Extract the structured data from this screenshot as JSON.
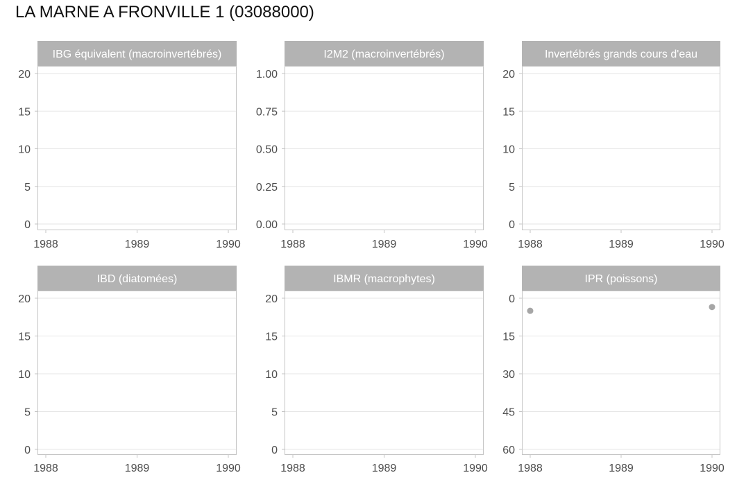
{
  "title": "LA MARNE A FRONVILLE 1 (03088000)",
  "colors": {
    "strip": "#b3b3b3",
    "strip_text": "#ffffff",
    "panel_border": "#c4c4c4",
    "grid": "#e6e6e6",
    "tick_text": "#4d4d4d",
    "point": "#a6a6a6"
  },
  "chart_data": [
    {
      "type": "scatter",
      "title": "IBG équivalent (macroinvertébrés)",
      "x_ticks": [
        1988,
        1989,
        1990
      ],
      "xlim": [
        1988,
        1990
      ],
      "y_ticks": [
        0,
        5,
        10,
        15,
        20
      ],
      "y_tick_labels": [
        "0",
        "5",
        "10",
        "15",
        "20"
      ],
      "ylim": [
        0,
        20
      ],
      "y_reversed": false,
      "grid": true,
      "points": []
    },
    {
      "type": "scatter",
      "title": "I2M2 (macroinvertébrés)",
      "x_ticks": [
        1988,
        1989,
        1990
      ],
      "xlim": [
        1988,
        1990
      ],
      "y_ticks": [
        0,
        0.25,
        0.5,
        0.75,
        1
      ],
      "y_tick_labels": [
        "0.00",
        "0.25",
        "0.50",
        "0.75",
        "1.00"
      ],
      "ylim": [
        0,
        1
      ],
      "y_reversed": false,
      "grid": true,
      "points": []
    },
    {
      "type": "scatter",
      "title": "Invertébrés grands cours d'eau",
      "x_ticks": [
        1988,
        1989,
        1990
      ],
      "xlim": [
        1988,
        1990
      ],
      "y_ticks": [
        0,
        5,
        10,
        15,
        20
      ],
      "y_tick_labels": [
        "0",
        "5",
        "10",
        "15",
        "20"
      ],
      "ylim": [
        0,
        20
      ],
      "y_reversed": false,
      "grid": true,
      "points": []
    },
    {
      "type": "scatter",
      "title": "IBD (diatomées)",
      "x_ticks": [
        1988,
        1989,
        1990
      ],
      "xlim": [
        1988,
        1990
      ],
      "y_ticks": [
        0,
        5,
        10,
        15,
        20
      ],
      "y_tick_labels": [
        "0",
        "5",
        "10",
        "15",
        "20"
      ],
      "ylim": [
        0,
        20
      ],
      "y_reversed": false,
      "grid": true,
      "points": []
    },
    {
      "type": "scatter",
      "title": "IBMR (macrophytes)",
      "x_ticks": [
        1988,
        1989,
        1990
      ],
      "xlim": [
        1988,
        1990
      ],
      "y_ticks": [
        0,
        5,
        10,
        15,
        20
      ],
      "y_tick_labels": [
        "0",
        "5",
        "10",
        "15",
        "20"
      ],
      "ylim": [
        0,
        20
      ],
      "y_reversed": false,
      "grid": true,
      "points": []
    },
    {
      "type": "scatter",
      "title": "IPR (poissons)",
      "x_ticks": [
        1988,
        1989,
        1990
      ],
      "xlim": [
        1988,
        1990
      ],
      "y_ticks": [
        0,
        15,
        30,
        45,
        60
      ],
      "y_tick_labels": [
        "0",
        "15",
        "30",
        "45",
        "60"
      ],
      "ylim": [
        0,
        60
      ],
      "y_reversed": true,
      "grid": true,
      "points": [
        {
          "x": 1988,
          "y": 5
        },
        {
          "x": 1990,
          "y": 3.5
        }
      ]
    }
  ]
}
